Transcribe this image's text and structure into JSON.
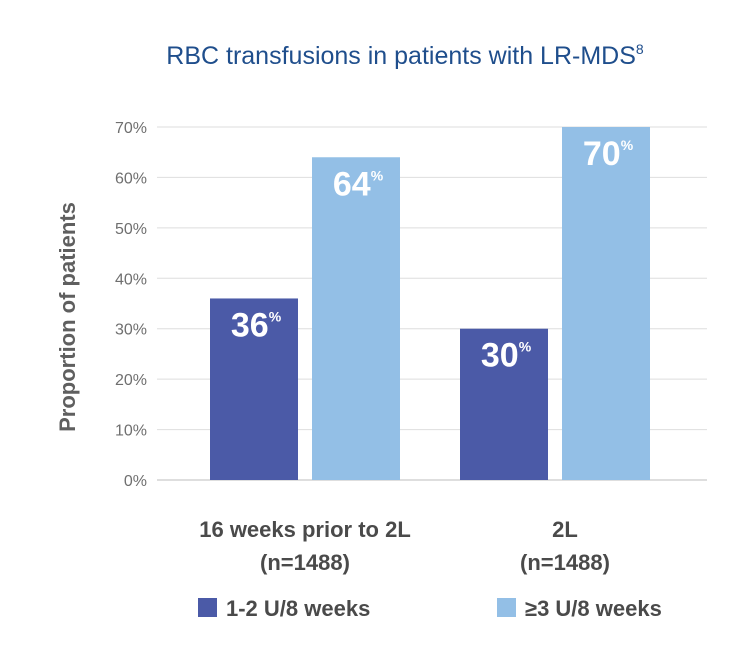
{
  "chart_data": {
    "type": "bar",
    "title": "RBC transfusions in patients with LR-MDS",
    "title_superscript": "8",
    "ylabel": "Proportion of patients",
    "ylim": [
      0,
      70
    ],
    "yticks": [
      0,
      10,
      20,
      30,
      40,
      50,
      60,
      70
    ],
    "ytick_suffix": "%",
    "grid": true,
    "categories": [
      {
        "line1": "16 weeks prior to 2L",
        "line2": "(n=1488)"
      },
      {
        "line1": "2L",
        "line2": "(n=1488)"
      }
    ],
    "series": [
      {
        "name": "1-2 U/8 weeks",
        "color": "#4b5aa7",
        "values": [
          36,
          30
        ]
      },
      {
        "name": "≥3 U/8 weeks",
        "color": "#93bfe6",
        "values": [
          64,
          70
        ]
      }
    ],
    "value_suffix": "%",
    "legend_position": "bottom"
  }
}
